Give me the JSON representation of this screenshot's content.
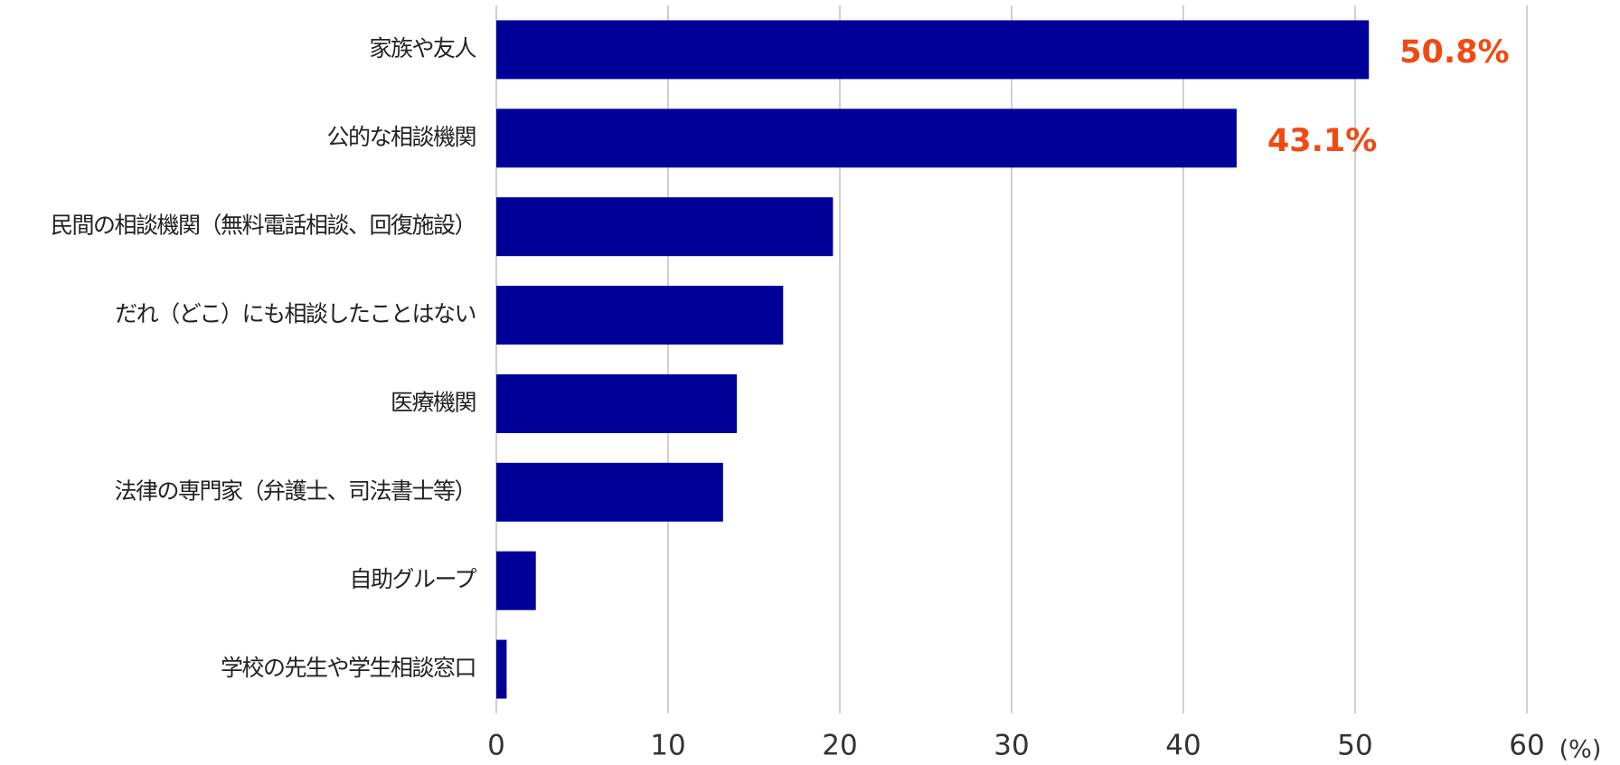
{
  "chart_data": {
    "type": "hbar",
    "categories": [
      "家族や友人",
      "公的な相談機関",
      "民間の相談機関（無料電話相談、回復施設）",
      "だれ（どこ）にも相談したことはない",
      "医療機関",
      "法律の専門家（弁護士、司法書士等）",
      "自助グループ",
      "学校の先生や学生相談窓口"
    ],
    "values": [
      50.8,
      43.1,
      19.6,
      16.7,
      14.0,
      13.2,
      2.3,
      0.6
    ],
    "value_labels": [
      "50.8%",
      "43.1%",
      null,
      null,
      null,
      null,
      null,
      null
    ],
    "color": "#000099",
    "label_color": "#f04a12",
    "xlabel": "(%)",
    "xlim": [
      0,
      60
    ],
    "xticks": [
      0,
      10,
      20,
      30,
      40,
      50,
      60
    ],
    "grid": true
  }
}
